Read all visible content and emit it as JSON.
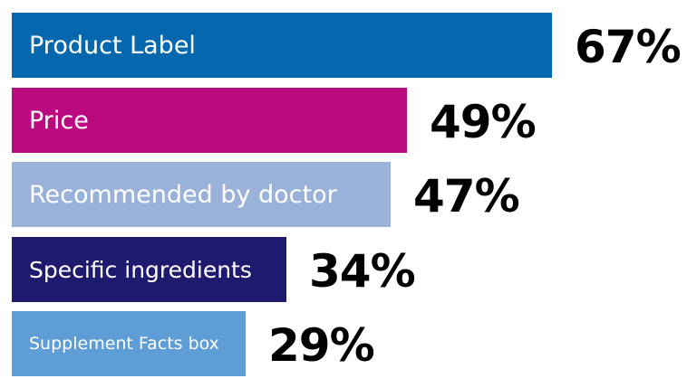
{
  "chart_data": {
    "type": "bar",
    "orientation": "horizontal",
    "categories": [
      "Product Label",
      "Price",
      "Recommended by doctor",
      "Specific ingredients",
      "Supplement Facts box"
    ],
    "values": [
      67,
      49,
      47,
      34,
      29
    ],
    "value_labels": [
      "67%",
      "49%",
      "47%",
      "34%",
      "29%"
    ],
    "unit": "%",
    "colors": [
      "#0568ae",
      "#bb0a80",
      "#9ab2d9",
      "#1e1a6e",
      "#5e9dd6"
    ],
    "xlim": [
      0,
      100
    ]
  }
}
